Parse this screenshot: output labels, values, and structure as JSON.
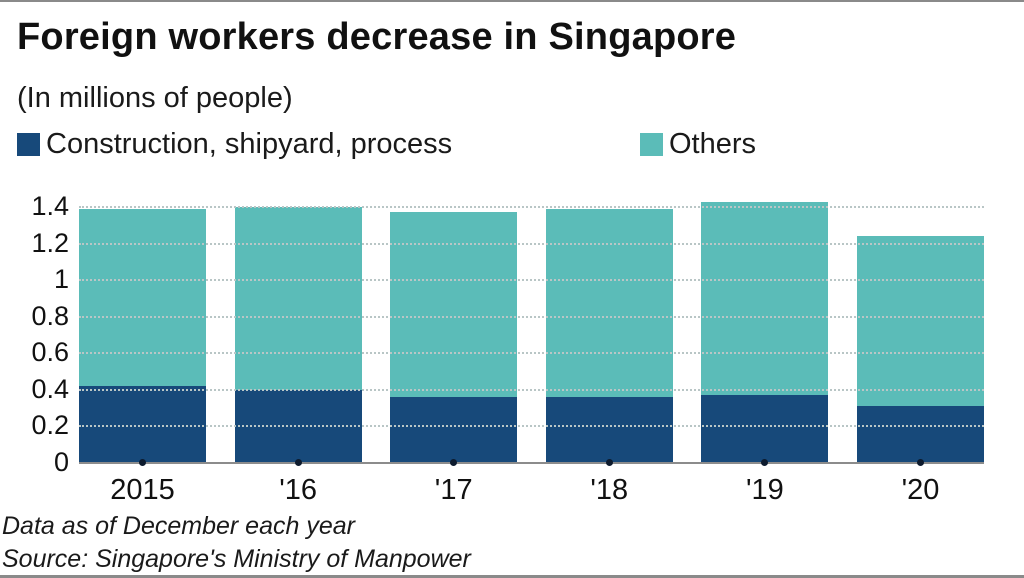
{
  "header": {
    "title": "Foreign workers decrease in Singapore",
    "subtitle": "(In millions of people)"
  },
  "legend": [
    {
      "label": "Construction, shipyard, process",
      "color": "#17497a"
    },
    {
      "label": "Others",
      "color": "#5bbcb8"
    }
  ],
  "footer": {
    "note": "Data as of December each year",
    "source": "Source: Singapore's Ministry of Manpower"
  },
  "chart_data": {
    "type": "bar",
    "stacked": true,
    "title": "Foreign workers decrease in Singapore",
    "subtitle": "(In millions of people)",
    "xlabel": "",
    "ylabel": "",
    "categories": [
      "2015",
      "'16",
      "'17",
      "'18",
      "'19",
      "'20"
    ],
    "series": [
      {
        "name": "Construction, shipyard, process",
        "color": "#17497a",
        "values": [
          0.42,
          0.4,
          0.36,
          0.36,
          0.37,
          0.31
        ]
      },
      {
        "name": "Others",
        "color": "#5bbcb8",
        "values": [
          0.97,
          1.0,
          1.01,
          1.03,
          1.06,
          0.93
        ]
      }
    ],
    "totals": [
      1.39,
      1.4,
      1.37,
      1.39,
      1.43,
      1.24
    ],
    "ylim": [
      0,
      1.4
    ],
    "yticks": [
      "0",
      "0.2",
      "0.4",
      "0.6",
      "0.8",
      "1",
      "1.2",
      "1.4"
    ],
    "grid": true,
    "legend_position": "top",
    "annotations": [
      "Data as of December each year",
      "Source: Singapore's Ministry of Manpower"
    ]
  }
}
